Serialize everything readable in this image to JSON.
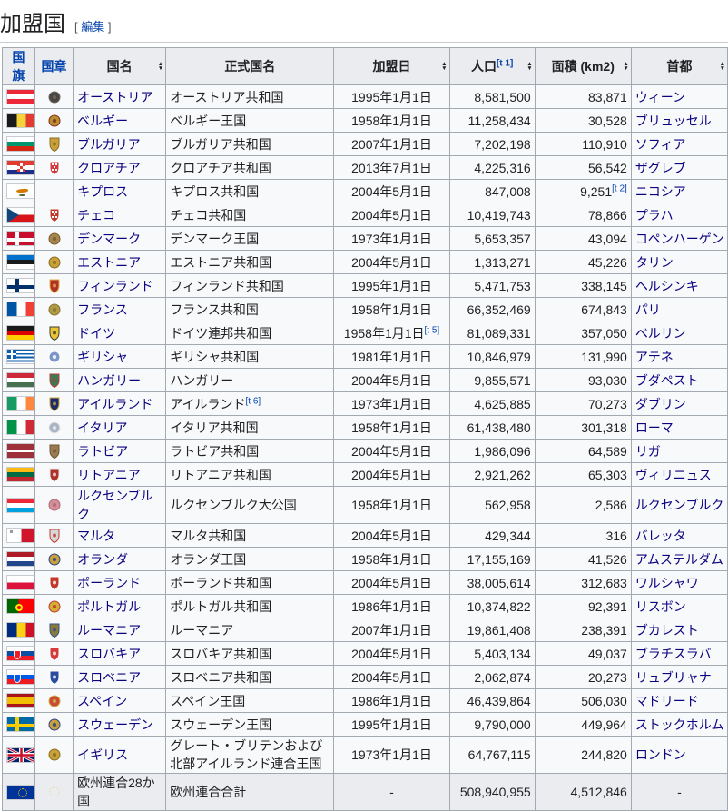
{
  "colors": {
    "link_blue": "#0645ad",
    "visited_link": "#0b0080",
    "table_border": "#a2a9b1",
    "header_bg": "#eaecf0",
    "body_bg": "#f8f9fa",
    "text": "#202122",
    "heading_rule": "#c8ccd1"
  },
  "heading": {
    "title": "加盟国",
    "bracket_open": "[",
    "edit": "編集",
    "bracket_close": "]"
  },
  "table": {
    "headers": [
      {
        "id": "flag",
        "label": "国旗",
        "link": true,
        "sortable": false
      },
      {
        "id": "coat",
        "label": "国章",
        "link": true,
        "sortable": false
      },
      {
        "id": "name",
        "label": "国名",
        "link": false,
        "sortable": true
      },
      {
        "id": "official",
        "label": "正式国名",
        "link": false,
        "sortable": false
      },
      {
        "id": "date",
        "label": "加盟日",
        "link": false,
        "sortable": true
      },
      {
        "id": "population",
        "label": "人口",
        "sup": "[t 1]",
        "link": false,
        "sortable": true
      },
      {
        "id": "area",
        "label": "面積 (km2)",
        "link": false,
        "sortable": true
      },
      {
        "id": "capital",
        "label": "首都",
        "link": false,
        "sortable": true
      }
    ],
    "rows": [
      {
        "id": "austria",
        "name": "オーストリア",
        "official": "オーストリア共和国",
        "date": "1995年1月1日",
        "population": "8,581,500",
        "area": "83,871",
        "capital": "ウィーン",
        "flag": {
          "type": "h",
          "colors": [
            "#ED2939",
            "#FFFFFF",
            "#ED2939"
          ]
        },
        "coat": {
          "shape": "round",
          "c1": "#4a4742",
          "c2": "#6b675f"
        }
      },
      {
        "id": "belgium",
        "name": "ベルギー",
        "official": "ベルギー王国",
        "date": "1958年1月1日",
        "population": "11,258,434",
        "area": "30,528",
        "capital": "ブリュッセル",
        "flag": {
          "type": "v",
          "colors": [
            "#1A1A1A",
            "#F2D33C",
            "#E43B31"
          ]
        },
        "coat": {
          "shape": "round",
          "c1": "#b5912f",
          "c2": "#8a2b20"
        }
      },
      {
        "id": "bulgaria",
        "name": "ブルガリア",
        "official": "ブルガリア共和国",
        "date": "2007年1月1日",
        "population": "7,202,198",
        "area": "110,910",
        "capital": "ソフィア",
        "flag": {
          "type": "h",
          "colors": [
            "#FFFFFF",
            "#00966E",
            "#D62612"
          ]
        },
        "coat": {
          "shape": "shield",
          "c1": "#c9a13b",
          "c2": "#8a6d1f"
        }
      },
      {
        "id": "croatia",
        "name": "クロアチア",
        "official": "クロアチア共和国",
        "date": "2013年7月1日",
        "population": "4,225,316",
        "area": "56,542",
        "capital": "ザグレブ",
        "flag": {
          "type": "croatia",
          "colors": [
            "#E03C31",
            "#FFFFFF",
            "#1B2F8A"
          ]
        },
        "coat": {
          "shape": "check",
          "c1": "#d43a3a",
          "c2": "#ffffff"
        }
      },
      {
        "id": "cyprus",
        "name": "キプロス",
        "official": "キプロス共和国",
        "date": "2004年5月1日",
        "population": "847,008",
        "area": "9,251",
        "area_sup": "[t 2]",
        "capital": "ニコシア",
        "flag": {
          "type": "cyprus",
          "colors": [
            "#FFFFFF",
            "#D57800",
            "#4E5B31"
          ]
        },
        "coat": null
      },
      {
        "id": "czech",
        "name": "チェコ",
        "official": "チェコ共和国",
        "date": "2004年5月1日",
        "population": "10,419,743",
        "area": "78,866",
        "capital": "プラハ",
        "flag": {
          "type": "czech",
          "colors": [
            "#FFFFFF",
            "#D7141A",
            "#11457E"
          ]
        },
        "coat": {
          "shape": "check",
          "c1": "#c0392b",
          "c2": "#ffffff"
        }
      },
      {
        "id": "denmark",
        "name": "デンマーク",
        "official": "デンマーク王国",
        "date": "1973年1月1日",
        "population": "5,653,357",
        "area": "43,094",
        "capital": "コペンハーゲン",
        "flag": {
          "type": "cross",
          "colors": [
            "#C8102E",
            "#FFFFFF"
          ]
        },
        "coat": {
          "shape": "round",
          "c1": "#a8864f",
          "c2": "#7a5c2e"
        }
      },
      {
        "id": "estonia",
        "name": "エストニア",
        "official": "エストニア共和国",
        "date": "2004年5月1日",
        "population": "1,313,271",
        "area": "45,226",
        "capital": "タリン",
        "flag": {
          "type": "h",
          "colors": [
            "#0072CE",
            "#1A1A1A",
            "#FFFFFF"
          ]
        },
        "coat": {
          "shape": "round",
          "c1": "#c9a13b",
          "c2": "#8a6d1f"
        }
      },
      {
        "id": "finland",
        "name": "フィンランド",
        "official": "フィンランド共和国",
        "date": "1995年1月1日",
        "population": "5,471,753",
        "area": "338,145",
        "capital": "ヘルシンキ",
        "flag": {
          "type": "cross",
          "colors": [
            "#FFFFFF",
            "#002F6C"
          ]
        },
        "coat": {
          "shape": "shield",
          "c1": "#b03128",
          "c2": "#e0b040"
        }
      },
      {
        "id": "france",
        "name": "フランス",
        "official": "フランス共和国",
        "date": "1958年1月1日",
        "population": "66,352,469",
        "area": "674,843",
        "capital": "パリ",
        "flag": {
          "type": "v",
          "colors": [
            "#0055A4",
            "#FFFFFF",
            "#EF4135"
          ]
        },
        "coat": {
          "shape": "round",
          "c1": "#b09a45",
          "c2": "#8a7530"
        }
      },
      {
        "id": "germany",
        "name": "ドイツ",
        "official": "ドイツ連邦共和国",
        "date": "1958年1月1日",
        "date_sup": "[t 5]",
        "population": "81,089,331",
        "area": "357,050",
        "capital": "ベルリン",
        "flag": {
          "type": "h",
          "colors": [
            "#1A1A1A",
            "#DD0000",
            "#FFCE00"
          ]
        },
        "coat": {
          "shape": "shield",
          "c1": "#ecc52e",
          "c2": "#3a3a3a"
        }
      },
      {
        "id": "greece",
        "name": "ギリシャ",
        "official": "ギリシャ共和国",
        "date": "1981年1月1日",
        "population": "10,846,979",
        "area": "131,990",
        "capital": "アテネ",
        "flag": {
          "type": "greece",
          "colors": [
            "#0D5EAF",
            "#FFFFFF"
          ]
        },
        "coat": {
          "shape": "round",
          "c1": "#7b96c8",
          "c2": "#ffffff"
        }
      },
      {
        "id": "hungary",
        "name": "ハンガリー",
        "official": "ハンガリー",
        "date": "2004年5月1日",
        "population": "9,855,571",
        "area": "93,030",
        "capital": "ブダペスト",
        "flag": {
          "type": "h",
          "colors": [
            "#CE2939",
            "#FFFFFF",
            "#477050"
          ]
        },
        "coat": {
          "shape": "shield",
          "c1": "#3f7a4f",
          "c2": "#b04040"
        }
      },
      {
        "id": "ireland",
        "name": "アイルランド",
        "official": "アイルランド",
        "official_sup": "[t 6]",
        "date": "1973年1月1日",
        "population": "4,625,885",
        "area": "70,273",
        "capital": "ダブリン",
        "flag": {
          "type": "v",
          "colors": [
            "#169B62",
            "#FFFFFF",
            "#FF883E"
          ]
        },
        "coat": {
          "shape": "shield",
          "c1": "#1b2b6b",
          "c2": "#caa53d"
        }
      },
      {
        "id": "italy",
        "name": "イタリア",
        "official": "イタリア共和国",
        "date": "1958年1月1日",
        "population": "61,438,480",
        "area": "301,318",
        "capital": "ローマ",
        "flag": {
          "type": "v",
          "colors": [
            "#009246",
            "#FFFFFF",
            "#CE2B37"
          ]
        },
        "coat": {
          "shape": "round",
          "c1": "#aab4c8",
          "c2": "#e8e8e8"
        }
      },
      {
        "id": "latvia",
        "name": "ラトビア",
        "official": "ラトビア共和国",
        "date": "2004年5月1日",
        "population": "1,986,096",
        "area": "64,589",
        "capital": "リガ",
        "flag": {
          "type": "h",
          "colors": [
            "#9E3039",
            "#FFFFFF",
            "#9E3039"
          ],
          "weights": [
            2,
            1,
            2
          ]
        },
        "coat": {
          "shape": "shield",
          "c1": "#9a7b4f",
          "c2": "#6e5633"
        }
      },
      {
        "id": "lithuania",
        "name": "リトアニア",
        "official": "リトアニア共和国",
        "date": "2004年5月1日",
        "population": "2,921,262",
        "area": "65,303",
        "capital": "ヴィリニュス",
        "flag": {
          "type": "h",
          "colors": [
            "#FDB913",
            "#006A44",
            "#C1272D"
          ]
        },
        "coat": {
          "shape": "shield",
          "c1": "#b03128",
          "c2": "#e8e8e8"
        }
      },
      {
        "id": "luxembourg",
        "name": "ルクセンブルク",
        "official": "ルクセンブルク大公国",
        "date": "1958年1月1日",
        "population": "562,958",
        "area": "2,586",
        "capital": "ルクセンブルク",
        "flag": {
          "type": "h",
          "colors": [
            "#ED2939",
            "#FFFFFF",
            "#00A1DE"
          ]
        },
        "coat": {
          "shape": "round",
          "c1": "#d4909a",
          "c2": "#b06a74"
        }
      },
      {
        "id": "malta",
        "name": "マルタ",
        "official": "マルタ共和国",
        "date": "2004年5月1日",
        "population": "429,344",
        "area": "316",
        "capital": "バレッタ",
        "flag": {
          "type": "malta",
          "colors": [
            "#FFFFFF",
            "#CF142B",
            "#9a9a9a"
          ]
        },
        "coat": {
          "shape": "shield",
          "c1": "#d8d8d8",
          "c2": "#c0392b"
        }
      },
      {
        "id": "netherlands",
        "name": "オランダ",
        "official": "オランダ王国",
        "date": "1958年1月1日",
        "population": "17,155,169",
        "area": "41,526",
        "capital": "アムステルダム",
        "flag": {
          "type": "h",
          "colors": [
            "#AE1C28",
            "#FFFFFF",
            "#21468B"
          ]
        },
        "coat": {
          "shape": "round",
          "c1": "#c9a13b",
          "c2": "#2b3f8a"
        }
      },
      {
        "id": "poland",
        "name": "ポーランド",
        "official": "ポーランド共和国",
        "date": "2004年5月1日",
        "population": "38,005,614",
        "area": "312,683",
        "capital": "ワルシャワ",
        "flag": {
          "type": "h",
          "colors": [
            "#FFFFFF",
            "#DC143C"
          ]
        },
        "coat": {
          "shape": "shield",
          "c1": "#c0392b",
          "c2": "#ffffff"
        }
      },
      {
        "id": "portugal",
        "name": "ポルトガル",
        "official": "ポルトガル共和国",
        "date": "1986年1月1日",
        "population": "10,374,822",
        "area": "92,391",
        "capital": "リスボン",
        "flag": {
          "type": "portugal",
          "colors": [
            "#006600",
            "#FF0000",
            "#FFE900"
          ]
        },
        "coat": {
          "shape": "round",
          "c1": "#d4af37",
          "c2": "#c0392b"
        }
      },
      {
        "id": "romania",
        "name": "ルーマニア",
        "official": "ルーマニア",
        "date": "2007年1月1日",
        "population": "19,861,408",
        "area": "238,391",
        "capital": "ブカレスト",
        "flag": {
          "type": "v",
          "colors": [
            "#002B7F",
            "#FCD116",
            "#CE1126"
          ]
        },
        "coat": {
          "shape": "shield",
          "c1": "#8a7a3a",
          "c2": "#33508a"
        }
      },
      {
        "id": "slovakia",
        "name": "スロバキア",
        "official": "スロバキア共和国",
        "date": "2004年5月1日",
        "population": "5,403,134",
        "area": "49,037",
        "capital": "ブラチスラバ",
        "flag": {
          "type": "shieldflag",
          "colors": [
            "#FFFFFF",
            "#0B4EA2",
            "#EE1C25"
          ],
          "shield": "#EE1C25"
        },
        "coat": {
          "shape": "shield",
          "c1": "#d43a3a",
          "c2": "#ffffff"
        }
      },
      {
        "id": "slovenia",
        "name": "スロベニア",
        "official": "スロベニア共和国",
        "date": "2004年5月1日",
        "population": "2,062,874",
        "area": "20,273",
        "capital": "リュブリャナ",
        "flag": {
          "type": "shieldflag",
          "colors": [
            "#FFFFFF",
            "#005CE6",
            "#ED1C24"
          ],
          "shield": "#005CE6"
        },
        "coat": {
          "shape": "shield",
          "c1": "#2b4ba0",
          "c2": "#ffffff"
        }
      },
      {
        "id": "spain",
        "name": "スペイン",
        "official": "スペイン王国",
        "date": "1986年1月1日",
        "population": "46,439,864",
        "area": "506,030",
        "capital": "マドリード",
        "flag": {
          "type": "h",
          "colors": [
            "#AA151B",
            "#F1BF00",
            "#AA151B"
          ],
          "weights": [
            1,
            2,
            1
          ]
        },
        "coat": {
          "shape": "round",
          "c1": "#c84a3a",
          "c2": "#d4af37"
        }
      },
      {
        "id": "sweden",
        "name": "スウェーデン",
        "official": "スウェーデン王国",
        "date": "1995年1月1日",
        "population": "9,790,000",
        "area": "449,964",
        "capital": "ストックホルム",
        "flag": {
          "type": "cross",
          "colors": [
            "#006AA7",
            "#FECC02"
          ]
        },
        "coat": {
          "shape": "round",
          "c1": "#c9a13b",
          "c2": "#2b3f8a"
        }
      },
      {
        "id": "uk",
        "name": "イギリス",
        "official": "グレート・ブリテンおよび北部アイルランド連合王国",
        "date": "1973年1月1日",
        "population": "64,767,115",
        "area": "244,820",
        "capital": "ロンドン",
        "flag": {
          "type": "uk",
          "colors": [
            "#012169",
            "#FFFFFF",
            "#C8102E"
          ]
        },
        "coat": {
          "shape": "round",
          "c1": "#c9a13b",
          "c2": "#8a6d1f"
        }
      },
      {
        "id": "eu-total",
        "total": true,
        "name": "欧州連合28か国",
        "official": "欧州連合合計",
        "date": "-",
        "population": "508,940,955",
        "area": "4,512,846",
        "capital": "-",
        "flag": {
          "type": "eu",
          "colors": [
            "#003399",
            "#FFCC00"
          ]
        },
        "coat": {
          "shape": "stars",
          "c1": "#e8d8a8",
          "c2": "#e8d8a8"
        }
      }
    ]
  }
}
